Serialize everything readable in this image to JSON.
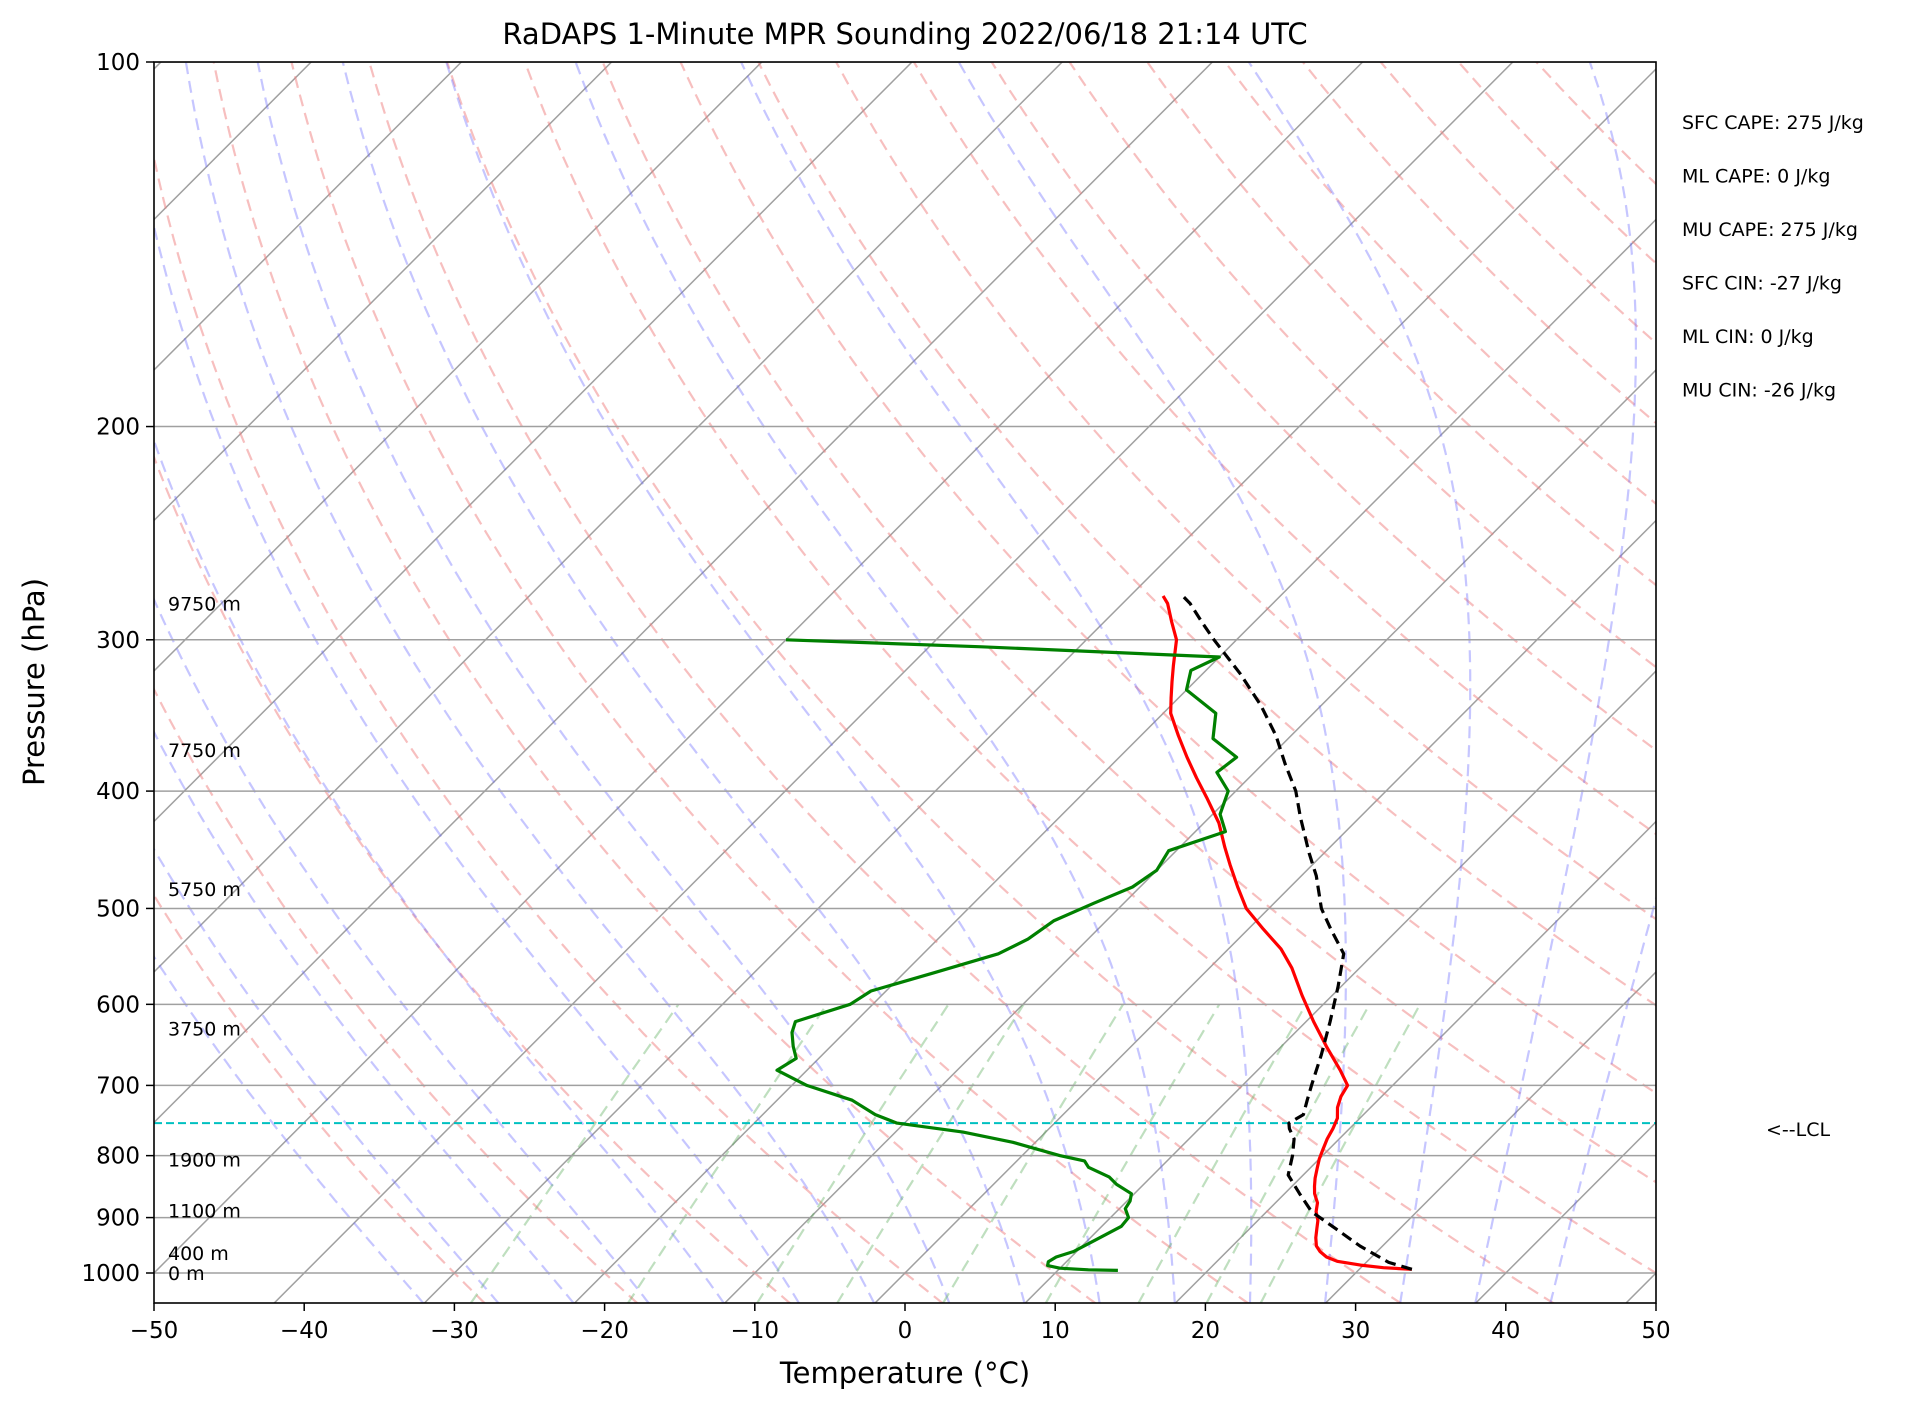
{
  "chart_data": {
    "type": "skew-t",
    "title": "RaDAPS 1-Minute MPR Sounding 2022/06/18 21:14 UTC",
    "xlabel": "Temperature (°C)",
    "ylabel": "Pressure (hPa)",
    "xlim": [
      -50,
      50
    ],
    "ylim": [
      1050,
      100
    ],
    "y_scale": "log",
    "x_ticks": [
      -50,
      -40,
      -30,
      -20,
      -10,
      0,
      10,
      20,
      30,
      40,
      50
    ],
    "x_tick_labels": [
      "−50",
      "−40",
      "−30",
      "−20",
      "−10",
      "0",
      "10",
      "20",
      "30",
      "40",
      "50"
    ],
    "y_ticks": [
      1000,
      900,
      800,
      700,
      600,
      500,
      400,
      300,
      200,
      100
    ],
    "y_tick_labels": [
      "1000",
      "900",
      "800",
      "700",
      "600",
      "500",
      "400",
      "300",
      "200",
      "100"
    ],
    "grid": true,
    "background_lines": {
      "isotherms": [
        -130,
        -120,
        -110,
        -100,
        -90,
        -80,
        -70,
        -60,
        -50,
        -40,
        -30,
        -20,
        -10,
        0,
        10,
        20,
        30,
        40,
        50
      ],
      "dry_adiabats_theta_c": [
        -30,
        -20,
        -10,
        0,
        10,
        20,
        30,
        40,
        50,
        60,
        70,
        80,
        90,
        100,
        110,
        120,
        130,
        140,
        150,
        160,
        170,
        180
      ],
      "moist_adiabats_start_t_c": [
        -30,
        -25,
        -20,
        -15,
        -10,
        -5,
        0,
        5,
        10,
        15,
        20,
        25,
        30,
        35,
        40,
        45
      ],
      "mixing_ratios_gkg": [
        0.4,
        1,
        2,
        3,
        5,
        8,
        12,
        16,
        20
      ],
      "mixing_ratio_top_hpa": 600
    },
    "series": [
      {
        "role": "temperature",
        "color": "#ff0000",
        "points": [
          [
            993,
            33.5
          ],
          [
            990,
            31.5
          ],
          [
            985,
            29.8
          ],
          [
            978,
            28.0
          ],
          [
            970,
            27.0
          ],
          [
            960,
            26.2
          ],
          [
            950,
            25.6
          ],
          [
            935,
            25.0
          ],
          [
            920,
            24.5
          ],
          [
            905,
            24.0
          ],
          [
            890,
            23.3
          ],
          [
            875,
            22.8
          ],
          [
            860,
            22.0
          ],
          [
            848,
            21.5
          ],
          [
            835,
            21.0
          ],
          [
            820,
            20.5
          ],
          [
            805,
            20.0
          ],
          [
            790,
            19.6
          ],
          [
            775,
            19.2
          ],
          [
            760,
            18.9
          ],
          [
            745,
            18.5
          ],
          [
            730,
            17.8
          ],
          [
            715,
            17.3
          ],
          [
            700,
            17.0
          ],
          [
            680,
            15.5
          ],
          [
            650,
            13.0
          ],
          [
            620,
            10.5
          ],
          [
            590,
            8.0
          ],
          [
            560,
            5.5
          ],
          [
            540,
            3.5
          ],
          [
            520,
            1.0
          ],
          [
            500,
            -1.5
          ],
          [
            480,
            -3.5
          ],
          [
            460,
            -5.5
          ],
          [
            445,
            -7.0
          ],
          [
            425,
            -9.0
          ],
          [
            405,
            -11.5
          ],
          [
            390,
            -13.5
          ],
          [
            375,
            -15.5
          ],
          [
            360,
            -17.5
          ],
          [
            345,
            -19.5
          ],
          [
            335,
            -20.5
          ],
          [
            325,
            -21.5
          ],
          [
            315,
            -22.5
          ],
          [
            300,
            -24.0
          ],
          [
            290,
            -25.5
          ],
          [
            280,
            -27.0
          ],
          [
            276,
            -27.8
          ]
        ]
      },
      {
        "role": "dewpoint",
        "color": "#008000",
        "points": [
          [
            995,
            14.0
          ],
          [
            994,
            12.0
          ],
          [
            991,
            10.0
          ],
          [
            986,
            9.0
          ],
          [
            979,
            8.8
          ],
          [
            970,
            9.0
          ],
          [
            960,
            9.8
          ],
          [
            945,
            10.3
          ],
          [
            930,
            10.8
          ],
          [
            915,
            11.3
          ],
          [
            900,
            11.2
          ],
          [
            885,
            10.4
          ],
          [
            872,
            10.2
          ],
          [
            860,
            9.8
          ],
          [
            845,
            8.2
          ],
          [
            833,
            7.2
          ],
          [
            818,
            5.2
          ],
          [
            808,
            4.5
          ],
          [
            800,
            2.5
          ],
          [
            780,
            -1.5
          ],
          [
            765,
            -5.5
          ],
          [
            752,
            -10.5
          ],
          [
            740,
            -12.5
          ],
          [
            720,
            -15.0
          ],
          [
            700,
            -19.0
          ],
          [
            680,
            -22.0
          ],
          [
            665,
            -21.5
          ],
          [
            650,
            -22.5
          ],
          [
            633,
            -23.5
          ],
          [
            620,
            -24.0
          ],
          [
            600,
            -21.5
          ],
          [
            585,
            -21.0
          ],
          [
            565,
            -18.0
          ],
          [
            545,
            -15.0
          ],
          [
            530,
            -14.0
          ],
          [
            512,
            -13.5
          ],
          [
            495,
            -12.0
          ],
          [
            480,
            -10.5
          ],
          [
            465,
            -10.0
          ],
          [
            448,
            -10.5
          ],
          [
            432,
            -8.0
          ],
          [
            418,
            -9.5
          ],
          [
            400,
            -10.5
          ],
          [
            386,
            -12.5
          ],
          [
            375,
            -12.2
          ],
          [
            362,
            -15.0
          ],
          [
            345,
            -16.5
          ],
          [
            330,
            -20.0
          ],
          [
            318,
            -21.0
          ],
          [
            310,
            -20.0
          ],
          [
            304,
            -36.5
          ],
          [
            300,
            -50.0
          ]
        ]
      },
      {
        "role": "parcel",
        "color": "#000000",
        "style": "dashed",
        "points": [
          [
            993,
            33.5
          ],
          [
            980,
            31.5
          ],
          [
            950,
            28.5
          ],
          [
            920,
            25.8
          ],
          [
            890,
            23.0
          ],
          [
            860,
            21.0
          ],
          [
            830,
            19.0
          ],
          [
            800,
            18.0
          ],
          [
            775,
            17.0
          ],
          [
            760,
            16.0
          ],
          [
            752,
            15.6
          ],
          [
            740,
            16.0
          ],
          [
            720,
            15.3
          ],
          [
            700,
            14.6
          ],
          [
            660,
            13.2
          ],
          [
            620,
            11.6
          ],
          [
            580,
            9.8
          ],
          [
            545,
            8.0
          ],
          [
            520,
            5.5
          ],
          [
            500,
            3.5
          ],
          [
            470,
            1.0
          ],
          [
            450,
            -1.0
          ],
          [
            420,
            -4.0
          ],
          [
            400,
            -6.0
          ],
          [
            380,
            -8.5
          ],
          [
            360,
            -11.0
          ],
          [
            340,
            -14.0
          ],
          [
            320,
            -17.5
          ],
          [
            300,
            -21.5
          ],
          [
            290,
            -23.5
          ],
          [
            280,
            -25.5
          ],
          [
            276,
            -26.5
          ]
        ]
      }
    ],
    "lcl_pressure_hpa": 752,
    "lcl_label": "<--LCL",
    "height_labels": [
      {
        "text": "9750 m",
        "p": 280
      },
      {
        "text": "7750 m",
        "p": 370
      },
      {
        "text": "5750 m",
        "p": 482
      },
      {
        "text": "3750 m",
        "p": 628
      },
      {
        "text": "1900 m",
        "p": 806
      },
      {
        "text": "1100 m",
        "p": 888
      },
      {
        "text": "400 m",
        "p": 963
      },
      {
        "text": "0 m",
        "p": 1000
      }
    ],
    "stats": [
      "SFC CAPE: 275 J/kg",
      "ML CAPE: 0 J/kg",
      "MU CAPE: 275 J/kg",
      "SFC CIN: -27 J/kg",
      "ML CIN: 0 J/kg",
      "MU CIN: -26 J/kg"
    ],
    "colors": {
      "isotherm": "#a0a0a0",
      "dry_adiabat": "#f08080",
      "moist_adiabat": "#6a6aff",
      "mixing_ratio": "#60b060",
      "lcl_line": "#00c0c0"
    }
  }
}
